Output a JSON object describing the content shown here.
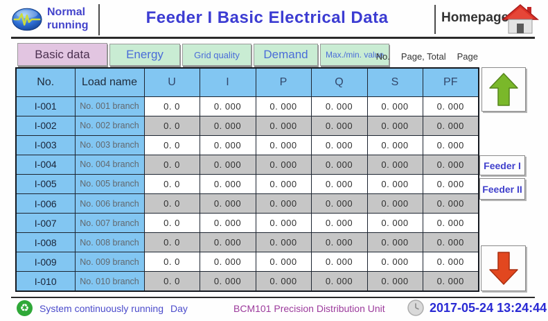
{
  "header": {
    "status_line1": "Normal",
    "status_line2": "running",
    "title": "Feeder I Basic Electrical Data",
    "homepage_label": "Homepage"
  },
  "tabs": [
    {
      "label": "Basic data",
      "active": true
    },
    {
      "label": "Energy",
      "active": false
    },
    {
      "label": "Grid quality",
      "active": false
    },
    {
      "label": "Demand",
      "active": false
    },
    {
      "label": "Max./min. value",
      "active": false
    }
  ],
  "page_info": {
    "no_label": "No.",
    "mid_label": "Page, Total",
    "end_label": "Page"
  },
  "table": {
    "columns": [
      "No.",
      "Load name",
      "U",
      "I",
      "P",
      "Q",
      "S",
      "PF"
    ],
    "rows": [
      {
        "no": "I-001",
        "load": "No. 001 branch",
        "values": [
          "0. 0",
          "0. 000",
          "0. 000",
          "0. 000",
          "0. 000",
          "0. 000"
        ]
      },
      {
        "no": "I-002",
        "load": "No. 002 branch",
        "values": [
          "0. 0",
          "0. 000",
          "0. 000",
          "0. 000",
          "0. 000",
          "0. 000"
        ]
      },
      {
        "no": "I-003",
        "load": "No. 003 branch",
        "values": [
          "0. 0",
          "0. 000",
          "0. 000",
          "0. 000",
          "0. 000",
          "0. 000"
        ]
      },
      {
        "no": "I-004",
        "load": "No. 004 branch",
        "values": [
          "0. 0",
          "0. 000",
          "0. 000",
          "0. 000",
          "0. 000",
          "0. 000"
        ]
      },
      {
        "no": "I-005",
        "load": "No. 005 branch",
        "values": [
          "0. 0",
          "0. 000",
          "0. 000",
          "0. 000",
          "0. 000",
          "0. 000"
        ]
      },
      {
        "no": "I-006",
        "load": "No. 006 branch",
        "values": [
          "0. 0",
          "0. 000",
          "0. 000",
          "0. 000",
          "0. 000",
          "0. 000"
        ]
      },
      {
        "no": "I-007",
        "load": "No. 007 branch",
        "values": [
          "0. 0",
          "0. 000",
          "0. 000",
          "0. 000",
          "0. 000",
          "0. 000"
        ]
      },
      {
        "no": "I-008",
        "load": "No. 008 branch",
        "values": [
          "0. 0",
          "0. 000",
          "0. 000",
          "0. 000",
          "0. 000",
          "0. 000"
        ]
      },
      {
        "no": "I-009",
        "load": "No. 009 branch",
        "values": [
          "0. 0",
          "0. 000",
          "0. 000",
          "0. 000",
          "0. 000",
          "0. 000"
        ]
      },
      {
        "no": "I-010",
        "load": "No. 010 branch",
        "values": [
          "0. 0",
          "0. 000",
          "0. 000",
          "0. 000",
          "0. 000",
          "0. 000"
        ]
      }
    ]
  },
  "side": {
    "feeder1_label": "Feeder I",
    "feeder2_label": "Feeder II"
  },
  "footer": {
    "status": "System continuously running",
    "mode": "Day",
    "device": "BCM101 Precision Distribution Unit",
    "datetime": "2017-05-24 13:24:44"
  },
  "colors": {
    "title_blue": "#3c3cd2",
    "table_header_blue": "#82c6f2",
    "row_alt_gray": "#c6c6c6",
    "tab_active_pink": "#e2c5e1",
    "tab_green": "#c9ecd3",
    "tab_text_blue": "#4a6cd8",
    "up_arrow_green": "#7ab82a",
    "down_arrow_red": "#e2471f",
    "recycle_green": "#2fa838",
    "device_magenta": "#9c3a9c",
    "time_blue": "#2a2ad4"
  }
}
